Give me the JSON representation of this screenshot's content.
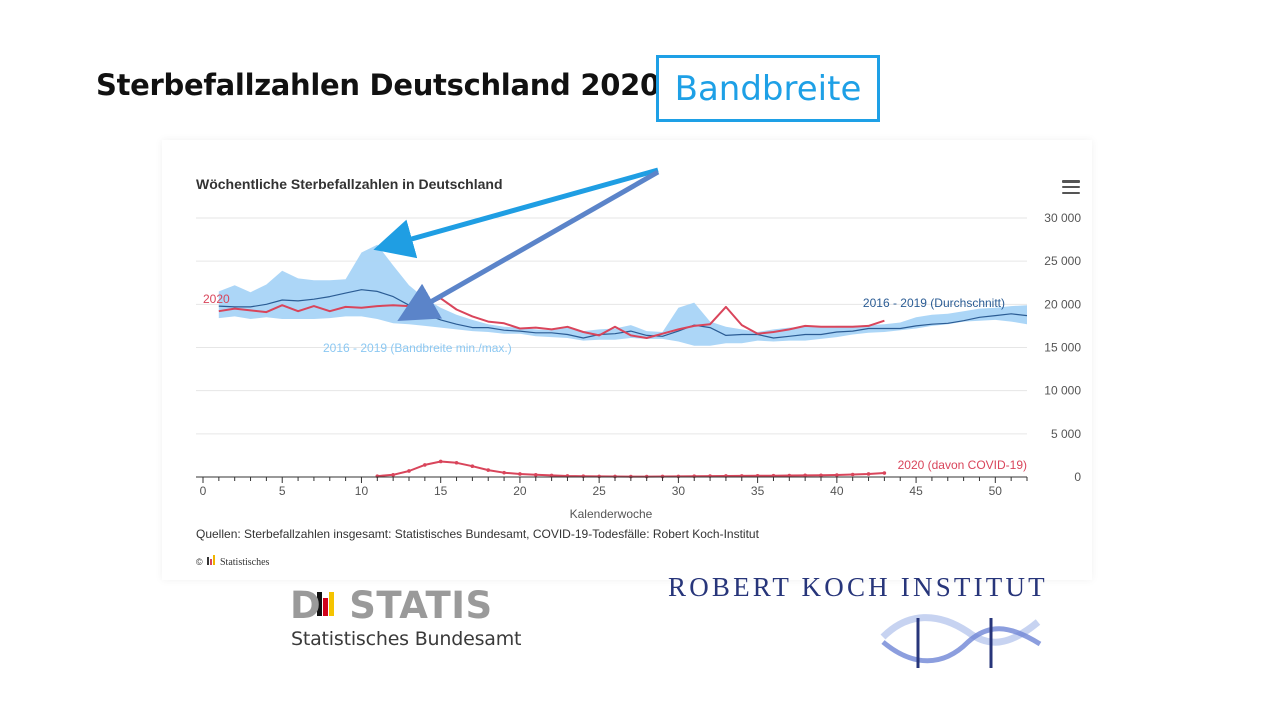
{
  "slide": {
    "title": "Sterbefallzahlen Deutschland 2020",
    "badge": "Bandbreite"
  },
  "chart_data": {
    "type": "line",
    "title": "Wöchentliche Sterbefallzahlen in Deutschland",
    "xlabel": "Kalenderwoche",
    "ylabel": "",
    "xlim": [
      0,
      52
    ],
    "ylim": [
      0,
      30000
    ],
    "xticks": [
      0,
      5,
      10,
      15,
      20,
      25,
      30,
      35,
      40,
      45,
      50
    ],
    "yticks": [
      0,
      5000,
      10000,
      15000,
      20000,
      25000,
      30000
    ],
    "ytick_labels": [
      "0",
      "5 000",
      "10 000",
      "15 000",
      "20 000",
      "25 000",
      "30 000"
    ],
    "grid": "horizontal",
    "source": "Quellen: Sterbefallzahlen insgesamt: Statistisches Bundesamt, COVID-19-Todesfälle: Robert Koch-Institut",
    "credit": "Statistisches",
    "band": {
      "name": "2016 - 2019 (Bandbreite min./max.)",
      "x": [
        1,
        2,
        3,
        4,
        5,
        6,
        7,
        8,
        9,
        10,
        11,
        12,
        13,
        14,
        15,
        16,
        17,
        18,
        19,
        20,
        21,
        22,
        23,
        24,
        25,
        26,
        27,
        28,
        29,
        30,
        31,
        32,
        33,
        34,
        35,
        36,
        37,
        38,
        39,
        40,
        41,
        42,
        43,
        44,
        45,
        46,
        47,
        48,
        49,
        50,
        51,
        52
      ],
      "min": [
        18400,
        18600,
        18300,
        18500,
        18300,
        18300,
        18300,
        18400,
        18600,
        18600,
        18300,
        17800,
        17700,
        17500,
        17300,
        17100,
        16900,
        16800,
        16600,
        16600,
        16300,
        16200,
        16100,
        15800,
        15900,
        15900,
        16100,
        16000,
        16000,
        15700,
        15200,
        15200,
        15500,
        15500,
        15800,
        15700,
        15800,
        15800,
        16000,
        16200,
        16500,
        16700,
        16800,
        17000,
        17200,
        17500,
        17700,
        18000,
        18100,
        18200,
        18000,
        17700
      ],
      "max": [
        21500,
        22200,
        21400,
        22300,
        23900,
        23000,
        22800,
        22800,
        22900,
        26000,
        26900,
        24500,
        22200,
        20700,
        19600,
        18800,
        18200,
        17700,
        17400,
        17300,
        17100,
        17000,
        17300,
        16900,
        17100,
        17200,
        17600,
        16900,
        16800,
        19600,
        20200,
        18000,
        17400,
        17100,
        16800,
        17100,
        17300,
        17400,
        17400,
        17500,
        17500,
        17600,
        17700,
        17900,
        18500,
        18800,
        18900,
        19200,
        19500,
        19600,
        19800,
        19900
      ]
    },
    "series": [
      {
        "name": "2016 - 2019 (Durchschnitt)",
        "color": "#2b5c94",
        "x": [
          1,
          2,
          3,
          4,
          5,
          6,
          7,
          8,
          9,
          10,
          11,
          12,
          13,
          14,
          15,
          16,
          17,
          18,
          19,
          20,
          21,
          22,
          23,
          24,
          25,
          26,
          27,
          28,
          29,
          30,
          31,
          32,
          33,
          34,
          35,
          36,
          37,
          38,
          39,
          40,
          41,
          42,
          43,
          44,
          45,
          46,
          47,
          48,
          49,
          50,
          51,
          52
        ],
        "values": [
          19800,
          19700,
          19700,
          20000,
          20500,
          20400,
          20600,
          20900,
          21300,
          21700,
          21500,
          20900,
          19900,
          18900,
          18200,
          17700,
          17300,
          17300,
          17000,
          16900,
          16700,
          16700,
          16500,
          16100,
          16500,
          16600,
          16900,
          16400,
          16300,
          16900,
          17600,
          17300,
          16400,
          16500,
          16500,
          16100,
          16300,
          16500,
          16500,
          16800,
          16900,
          17200,
          17200,
          17200,
          17500,
          17700,
          17800,
          18100,
          18500,
          18700,
          18900,
          18700
        ]
      },
      {
        "name": "2020",
        "color": "#d9455b",
        "x": [
          1,
          2,
          3,
          4,
          5,
          6,
          7,
          8,
          9,
          10,
          11,
          12,
          13,
          14,
          15,
          16,
          17,
          18,
          19,
          20,
          21,
          22,
          23,
          24,
          25,
          26,
          27,
          28,
          29,
          30,
          31,
          32,
          33,
          34,
          35,
          36,
          37,
          38,
          39,
          40,
          41,
          42,
          43
        ],
        "values": [
          19200,
          19500,
          19300,
          19100,
          19900,
          19200,
          19800,
          19200,
          19700,
          19600,
          19800,
          19900,
          19800,
          19900,
          20700,
          19400,
          18600,
          18000,
          17800,
          17200,
          17300,
          17100,
          17400,
          16800,
          16400,
          17400,
          16400,
          16100,
          16600,
          17100,
          17500,
          17700,
          19700,
          17600,
          16600,
          16800,
          17100,
          17500,
          17400,
          17400,
          17400,
          17500,
          18100
        ]
      },
      {
        "name": "2020 (davon COVID-19)",
        "color": "#d9455b",
        "x": [
          11,
          12,
          13,
          14,
          15,
          16,
          17,
          18,
          19,
          20,
          21,
          22,
          23,
          24,
          25,
          26,
          27,
          28,
          29,
          30,
          31,
          32,
          33,
          34,
          35,
          36,
          37,
          38,
          39,
          40,
          41,
          42,
          43
        ],
        "values": [
          100,
          250,
          700,
          1400,
          1800,
          1650,
          1250,
          800,
          500,
          350,
          250,
          180,
          120,
          90,
          70,
          60,
          50,
          50,
          60,
          70,
          90,
          110,
          120,
          130,
          140,
          150,
          170,
          190,
          200,
          230,
          290,
          350,
          460
        ]
      }
    ],
    "annotations": [
      {
        "text": "2020",
        "color": "#d9455b"
      },
      {
        "text": "2016 - 2019 (Durchschnitt)",
        "color": "#2b5c94"
      },
      {
        "text": "2016 - 2019 (Bandbreite min./max.)",
        "color": "#8cc8f2"
      },
      {
        "text": "2020 (davon COVID-19)",
        "color": "#d9455b"
      }
    ],
    "colors": {
      "band": "#a8d4f7",
      "arrow_upper": "#1f9ee3",
      "arrow_lower": "#5b84c9"
    }
  },
  "logos": {
    "destatis_word": "DSTATIS",
    "destatis_sub": "Statistisches Bundesamt",
    "rki_word": "ROBERT KOCH INSTITUT"
  }
}
